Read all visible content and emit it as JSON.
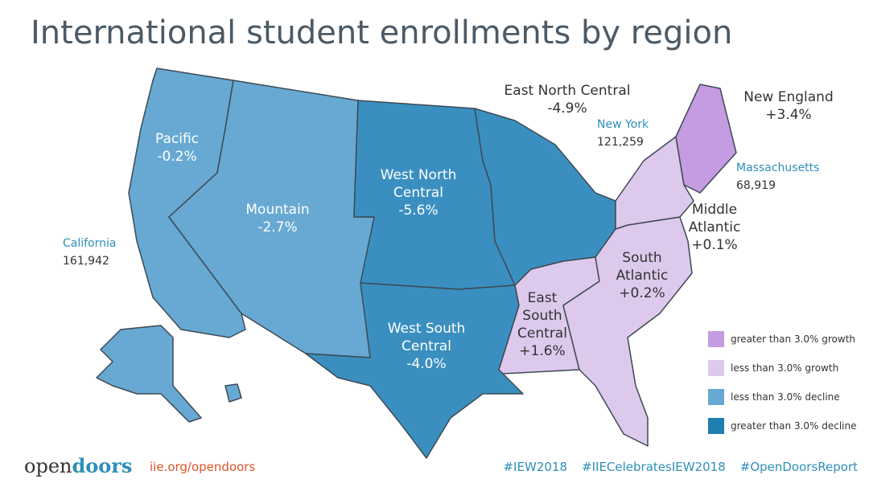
{
  "title": "International student enrollments by region",
  "regions": [
    {
      "name": "Pacific",
      "change": "-0.2%",
      "color": "#67a9d3"
    },
    {
      "name": "Mountain",
      "change": "-2.7%",
      "color": "#67a9d3"
    },
    {
      "name": "West North Central",
      "change": "-5.6%",
      "color": "#3a8fc0"
    },
    {
      "name": "West South Central",
      "change": "-4.0%",
      "color": "#3a8fc0"
    },
    {
      "name": "East North Central",
      "change": "-4.9%",
      "color": "#3a8fc0"
    },
    {
      "name": "East South Central",
      "change": "+1.6%",
      "color": "#ddc9ec"
    },
    {
      "name": "South Atlantic",
      "change": "+0.2%",
      "color": "#ddc9ec"
    },
    {
      "name": "Middle Atlantic",
      "change": "+0.1%",
      "color": "#ddc9ec"
    },
    {
      "name": "New England",
      "change": "+3.4%",
      "color": "#c59be2"
    }
  ],
  "states": [
    {
      "name": "California",
      "value": "161,942"
    },
    {
      "name": "New York",
      "value": "121,259"
    },
    {
      "name": "Massachusetts",
      "value": "68,919"
    }
  ],
  "legend": [
    {
      "label": "greater than 3.0% growth",
      "color": "#c59be2"
    },
    {
      "label": "less than 3.0% growth",
      "color": "#ddc9ec"
    },
    {
      "label": "less than 3.0% decline",
      "color": "#67a9d3"
    },
    {
      "label": "greater than 3.0% decline",
      "color": "#1f7fb0"
    }
  ],
  "footer": {
    "logo_open": "open",
    "logo_doors": "doors",
    "url": "iie.org/opendoors",
    "hashtags": [
      "#IEW2018",
      "#IIECelebratesIEW2018",
      "#OpenDoorsReport"
    ]
  }
}
